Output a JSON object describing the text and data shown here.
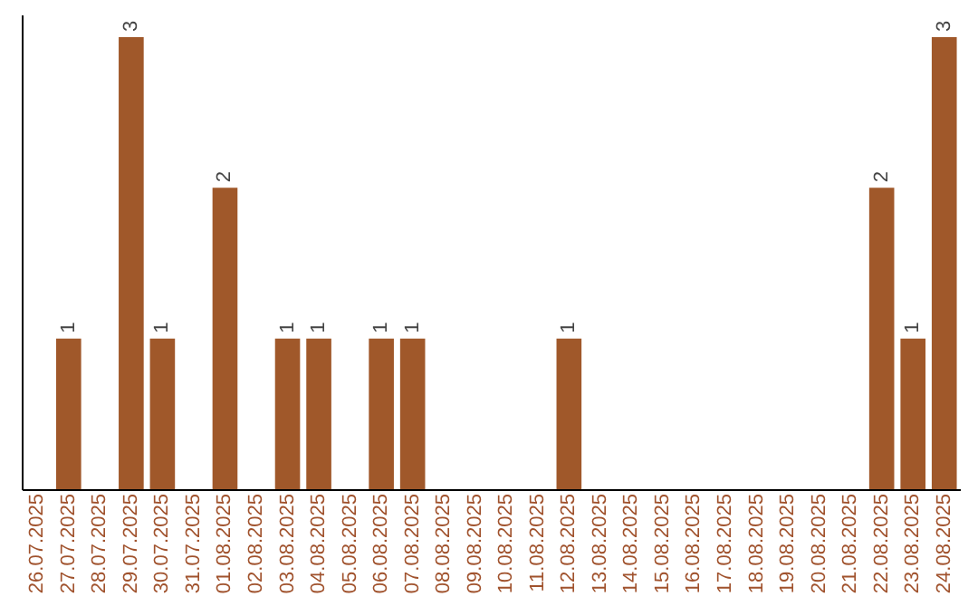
{
  "chart_data": {
    "type": "bar",
    "categories": [
      "26.07.2025",
      "27.07.2025",
      "28.07.2025",
      "29.07.2025",
      "30.07.2025",
      "31.07.2025",
      "01.08.2025",
      "02.08.2025",
      "03.08.2025",
      "04.08.2025",
      "05.08.2025",
      "06.08.2025",
      "07.08.2025",
      "08.08.2025",
      "09.08.2025",
      "10.08.2025",
      "11.08.2025",
      "12.08.2025",
      "13.08.2025",
      "14.08.2025",
      "15.08.2025",
      "16.08.2025",
      "17.08.2025",
      "18.08.2025",
      "19.08.2025",
      "20.08.2025",
      "21.08.2025",
      "22.08.2025",
      "23.08.2025",
      "24.08.2025"
    ],
    "values": [
      0,
      1,
      0,
      3,
      1,
      0,
      2,
      0,
      1,
      1,
      0,
      1,
      1,
      0,
      0,
      0,
      0,
      1,
      0,
      0,
      0,
      0,
      0,
      0,
      0,
      0,
      0,
      2,
      1,
      3
    ],
    "value_labels": [
      null,
      "1",
      null,
      "3",
      "1",
      null,
      "2",
      null,
      "1",
      "1",
      null,
      "1",
      "1",
      null,
      null,
      null,
      null,
      "1",
      null,
      null,
      null,
      null,
      null,
      null,
      null,
      null,
      null,
      "2",
      "1",
      "3"
    ],
    "color": "#a0582a",
    "ylim": [
      0,
      3.15
    ],
    "tick_labels": "x"
  }
}
